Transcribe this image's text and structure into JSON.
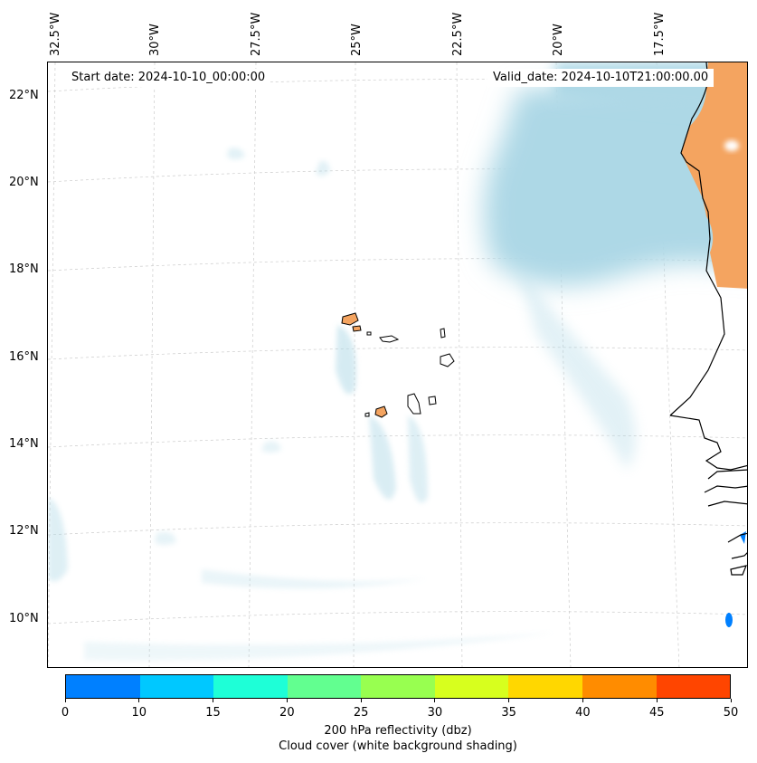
{
  "map": {
    "start_date": "Start date: 2024-10-10_00:00:00",
    "valid_date": "Valid_date: 2024-10-10T21:00:00.00",
    "lon_labels": [
      "32.5°W",
      "30°W",
      "27.5°W",
      "25°W",
      "22.5°W",
      "20°W",
      "17.5°W"
    ],
    "lat_labels": [
      "22°N",
      "20°N",
      "18°N",
      "16°N",
      "14°N",
      "12°N",
      "10°N"
    ],
    "colors": {
      "cloud_cover": "#add8e6",
      "land_reflectivity": "#f4a460",
      "coastline": "#000000",
      "gridline": "#cccccc"
    }
  },
  "colorbar": {
    "ticks": [
      "0",
      "10",
      "15",
      "20",
      "25",
      "30",
      "35",
      "40",
      "45",
      "50"
    ],
    "colors": [
      "#0080ff",
      "#00c8ff",
      "#1effd7",
      "#62ff90",
      "#98ff50",
      "#d7ff1e",
      "#ffd700",
      "#ff8c00",
      "#ff4500"
    ],
    "label_line1": "200 hPa reflectivity (dbz)",
    "label_line2": "Cloud cover (white background shading)"
  }
}
